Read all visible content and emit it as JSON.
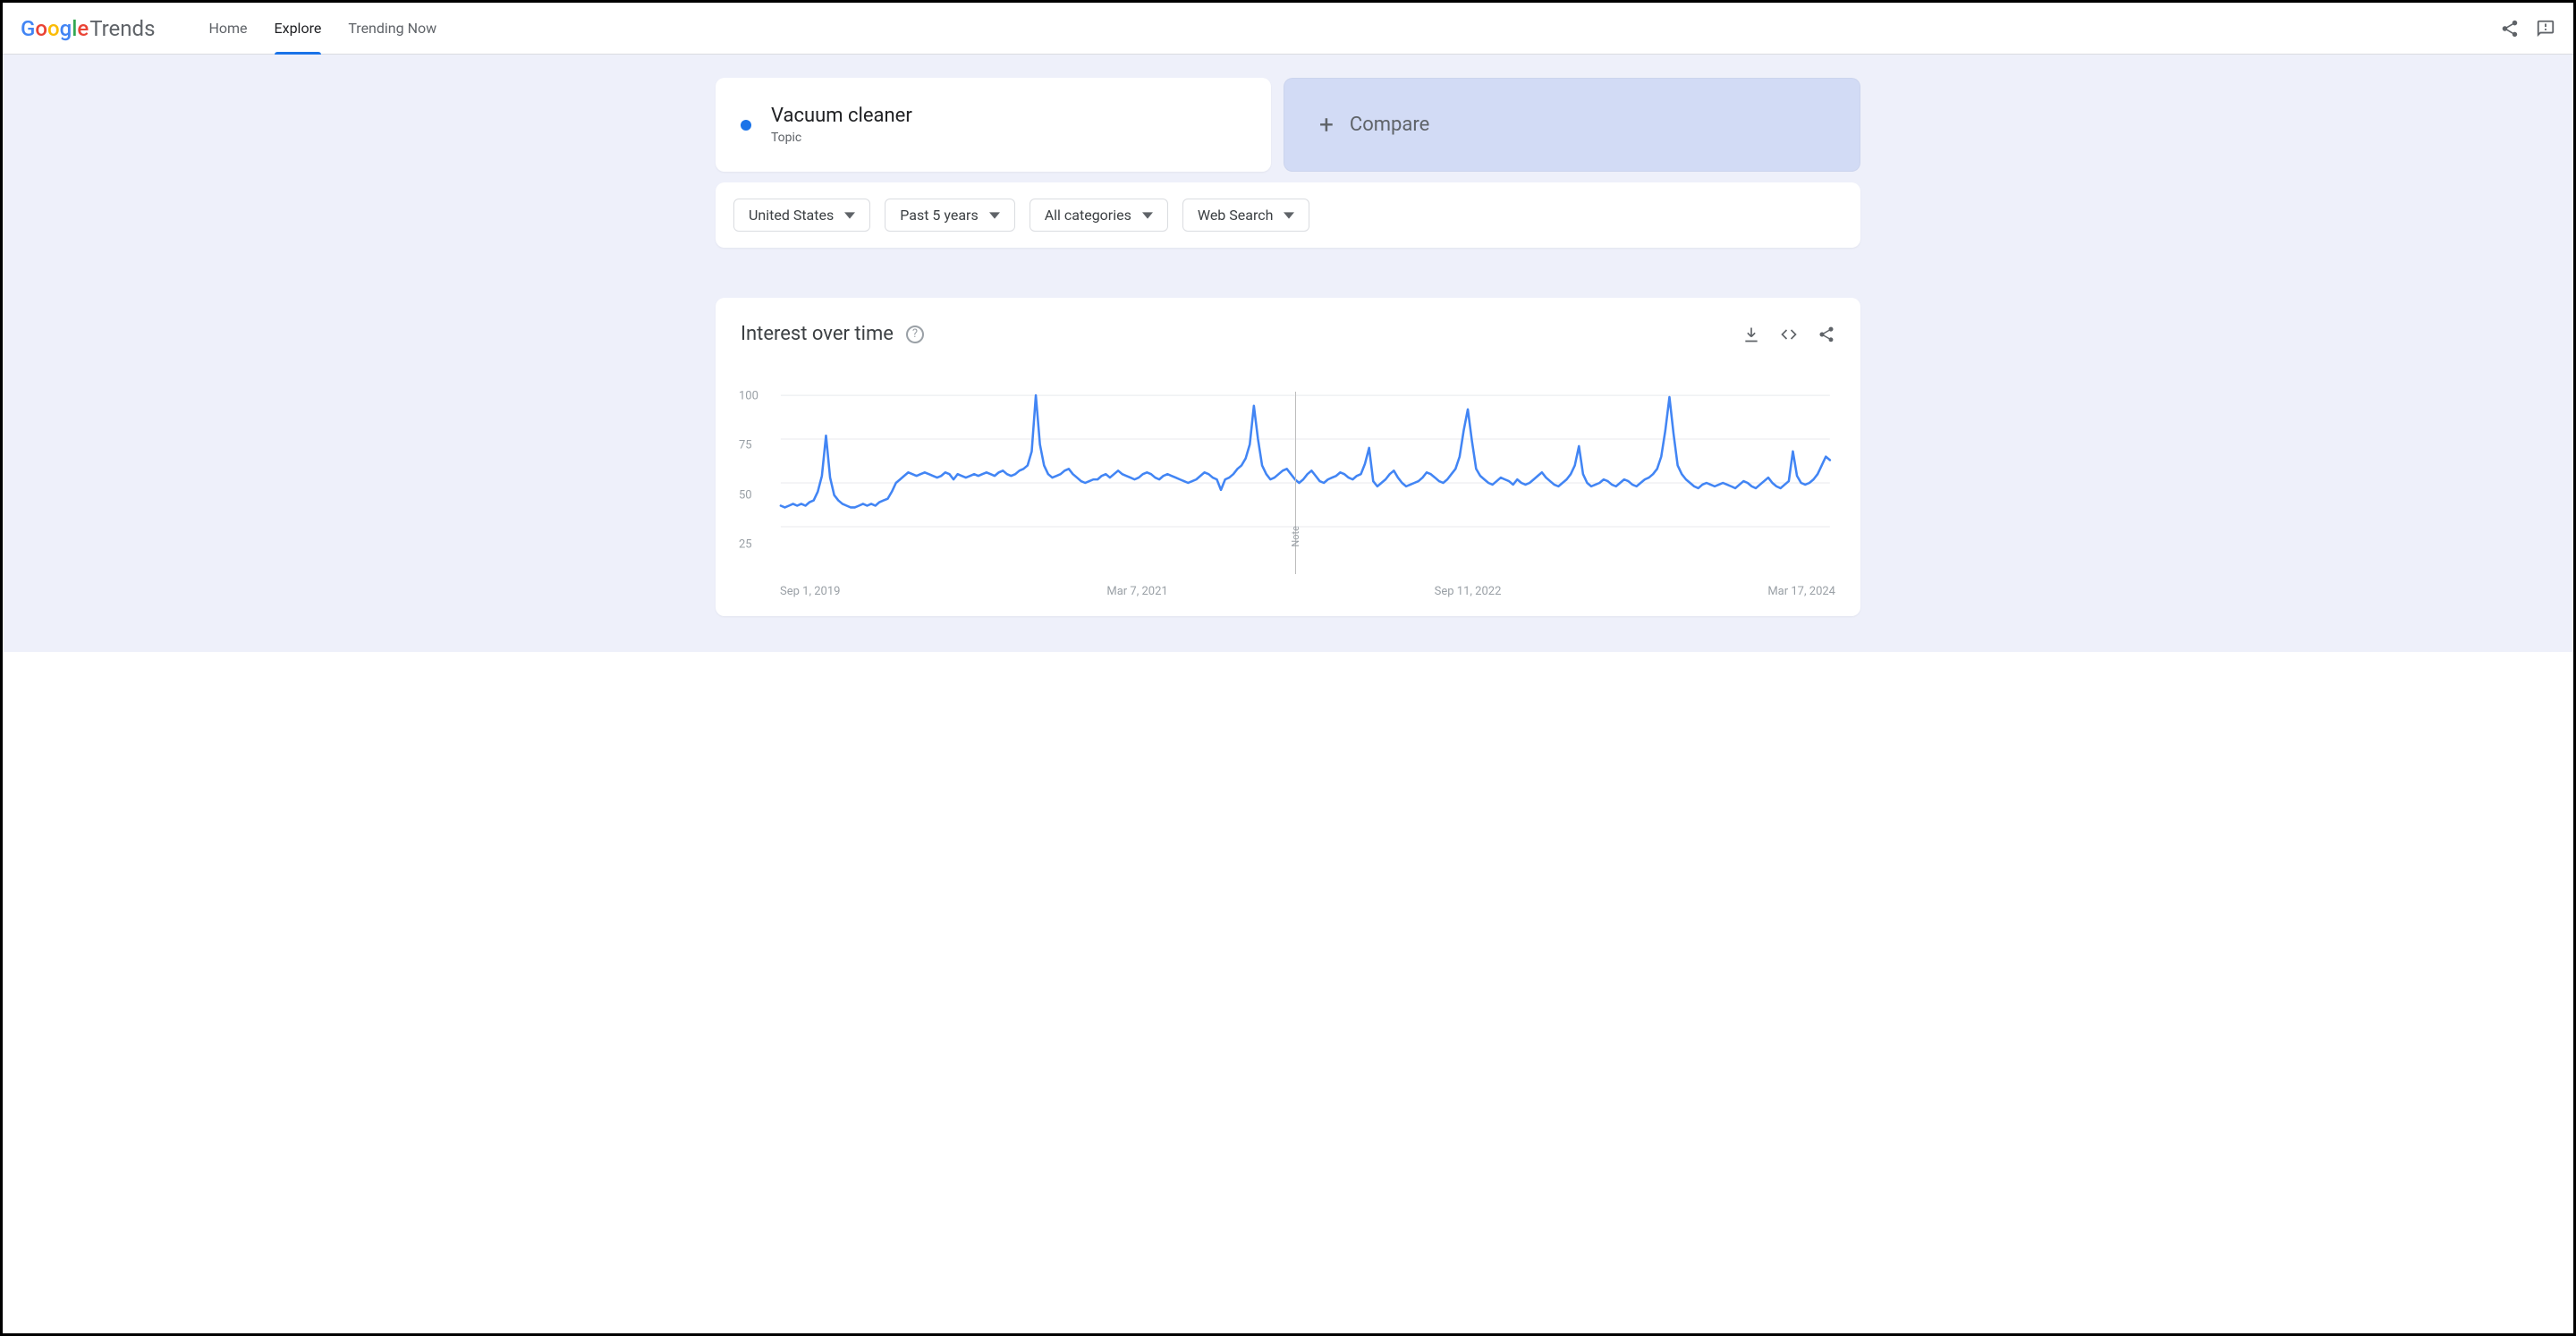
{
  "brand": {
    "name": "Google",
    "sub": "Trends"
  },
  "nav": {
    "items": [
      {
        "label": "Home",
        "active": false
      },
      {
        "label": "Explore",
        "active": true
      },
      {
        "label": "Trending Now",
        "active": false
      }
    ]
  },
  "search": {
    "term": "Vacuum cleaner",
    "type_label": "Topic",
    "dot_color": "#1a73e8",
    "compare_label": "Compare"
  },
  "filters": {
    "region": "United States",
    "timeframe": "Past 5 years",
    "category": "All categories",
    "search_type": "Web Search"
  },
  "chart": {
    "title": "Interest over time",
    "type": "line",
    "line_color": "#4285f4",
    "line_width": 2.5,
    "background_color": "#ffffff",
    "grid_color": "#e8eaed",
    "ylim": [
      0,
      100
    ],
    "ytick_values": [
      25,
      50,
      75,
      100
    ],
    "ytick_labels": [
      "25",
      "50",
      "75",
      "100"
    ],
    "x_labels": [
      "Sep 1, 2019",
      "Mar 7, 2021",
      "Sep 11, 2022",
      "Mar 17, 2024"
    ],
    "note": {
      "index": 125,
      "label": "Note"
    },
    "values": [
      37,
      36,
      37,
      38,
      37,
      38,
      37,
      39,
      40,
      45,
      54,
      77,
      53,
      43,
      40,
      38,
      37,
      36,
      36,
      37,
      38,
      37,
      38,
      37,
      39,
      40,
      41,
      45,
      50,
      52,
      54,
      56,
      55,
      54,
      55,
      56,
      55,
      54,
      53,
      54,
      56,
      55,
      52,
      55,
      54,
      53,
      54,
      55,
      54,
      55,
      56,
      55,
      54,
      56,
      57,
      55,
      54,
      55,
      57,
      58,
      60,
      68,
      100,
      72,
      60,
      55,
      53,
      54,
      55,
      57,
      58,
      55,
      53,
      51,
      50,
      51,
      52,
      52,
      54,
      55,
      53,
      55,
      57,
      55,
      54,
      53,
      52,
      53,
      55,
      56,
      55,
      53,
      52,
      54,
      55,
      54,
      53,
      52,
      51,
      50,
      51,
      52,
      54,
      56,
      55,
      53,
      52,
      46,
      52,
      53,
      55,
      58,
      60,
      64,
      72,
      94,
      75,
      60,
      55,
      52,
      53,
      55,
      57,
      58,
      55,
      52,
      50,
      52,
      55,
      57,
      54,
      51,
      50,
      52,
      53,
      54,
      56,
      55,
      53,
      52,
      54,
      55,
      61,
      70,
      51,
      48,
      50,
      52,
      55,
      57,
      53,
      50,
      48,
      49,
      50,
      51,
      53,
      56,
      55,
      53,
      51,
      50,
      52,
      55,
      58,
      65,
      80,
      92,
      74,
      58,
      54,
      52,
      50,
      49,
      51,
      53,
      52,
      51,
      49,
      52,
      50,
      49,
      50,
      52,
      54,
      56,
      53,
      51,
      49,
      48,
      50,
      52,
      55,
      60,
      71,
      55,
      50,
      48,
      49,
      50,
      52,
      51,
      49,
      48,
      50,
      52,
      51,
      49,
      48,
      50,
      52,
      53,
      55,
      58,
      65,
      80,
      99,
      78,
      60,
      55,
      52,
      50,
      48,
      47,
      49,
      50,
      49,
      48,
      49,
      50,
      49,
      48,
      47,
      49,
      51,
      50,
      48,
      47,
      49,
      51,
      53,
      50,
      48,
      47,
      49,
      51,
      68,
      54,
      50,
      49,
      50,
      52,
      55,
      60,
      65,
      63
    ]
  },
  "colors": {
    "page_bg": "#eef0fa"
  }
}
